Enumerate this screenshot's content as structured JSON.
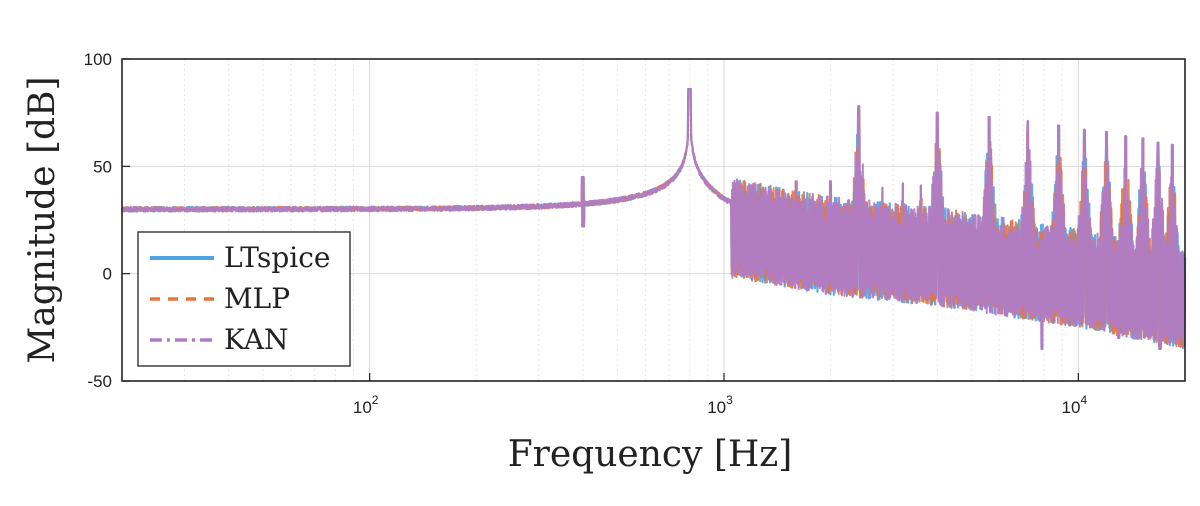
{
  "chart_data": {
    "type": "line",
    "xlabel": "Frequency [Hz]",
    "ylabel": "Magnitude [dB]",
    "xscale": "log",
    "xlim": [
      20,
      20000
    ],
    "ylim": [
      -50,
      100
    ],
    "grid": true,
    "legend_position": "bottom-left",
    "y_ticks": [
      "-50",
      "0",
      "50",
      "100"
    ],
    "x_ticks": [
      {
        "value": 100,
        "base": "10",
        "exp": "2"
      },
      {
        "value": 1000,
        "base": "10",
        "exp": "3"
      },
      {
        "value": 10000,
        "base": "10",
        "exp": "4"
      }
    ],
    "series": [
      {
        "name": "LTspice",
        "color": "#4fa3e0",
        "style": "solid"
      },
      {
        "name": "MLP",
        "color": "#e8743b",
        "style": "dashed"
      },
      {
        "name": "KAN",
        "color": "#b07cc6",
        "style": "dashdot"
      }
    ],
    "envelope": {
      "baseline_db": 30,
      "resonance_hz": 800,
      "resonance_peak_db": 86,
      "spur_hz": 400,
      "spur_db": 45,
      "harmonic_peaks": [
        {
          "x": 2400,
          "y": 78
        },
        {
          "x": 4000,
          "y": 75
        },
        {
          "x": 5600,
          "y": 73
        },
        {
          "x": 7200,
          "y": 71
        },
        {
          "x": 8800,
          "y": 69
        },
        {
          "x": 10400,
          "y": 67
        },
        {
          "x": 12000,
          "y": 66
        },
        {
          "x": 13600,
          "y": 64
        },
        {
          "x": 15200,
          "y": 63
        },
        {
          "x": 16800,
          "y": 61
        },
        {
          "x": 18400,
          "y": 60
        }
      ],
      "minor_peaks": [
        {
          "x": 1200,
          "y": 41
        },
        {
          "x": 1600,
          "y": 43
        },
        {
          "x": 2000,
          "y": 43
        },
        {
          "x": 2800,
          "y": 40
        },
        {
          "x": 3200,
          "y": 42
        },
        {
          "x": 3600,
          "y": 41
        }
      ],
      "noise_floor_high": [
        {
          "x": 1100,
          "y": 18
        },
        {
          "x": 2000,
          "y": 10
        },
        {
          "x": 4000,
          "y": 5
        },
        {
          "x": 10000,
          "y": -5
        },
        {
          "x": 20000,
          "y": -15
        }
      ],
      "deep_notches": [
        {
          "x": 7900,
          "y": -35
        },
        {
          "x": 13000,
          "y": -30
        },
        {
          "x": 17000,
          "y": -35
        }
      ]
    }
  }
}
